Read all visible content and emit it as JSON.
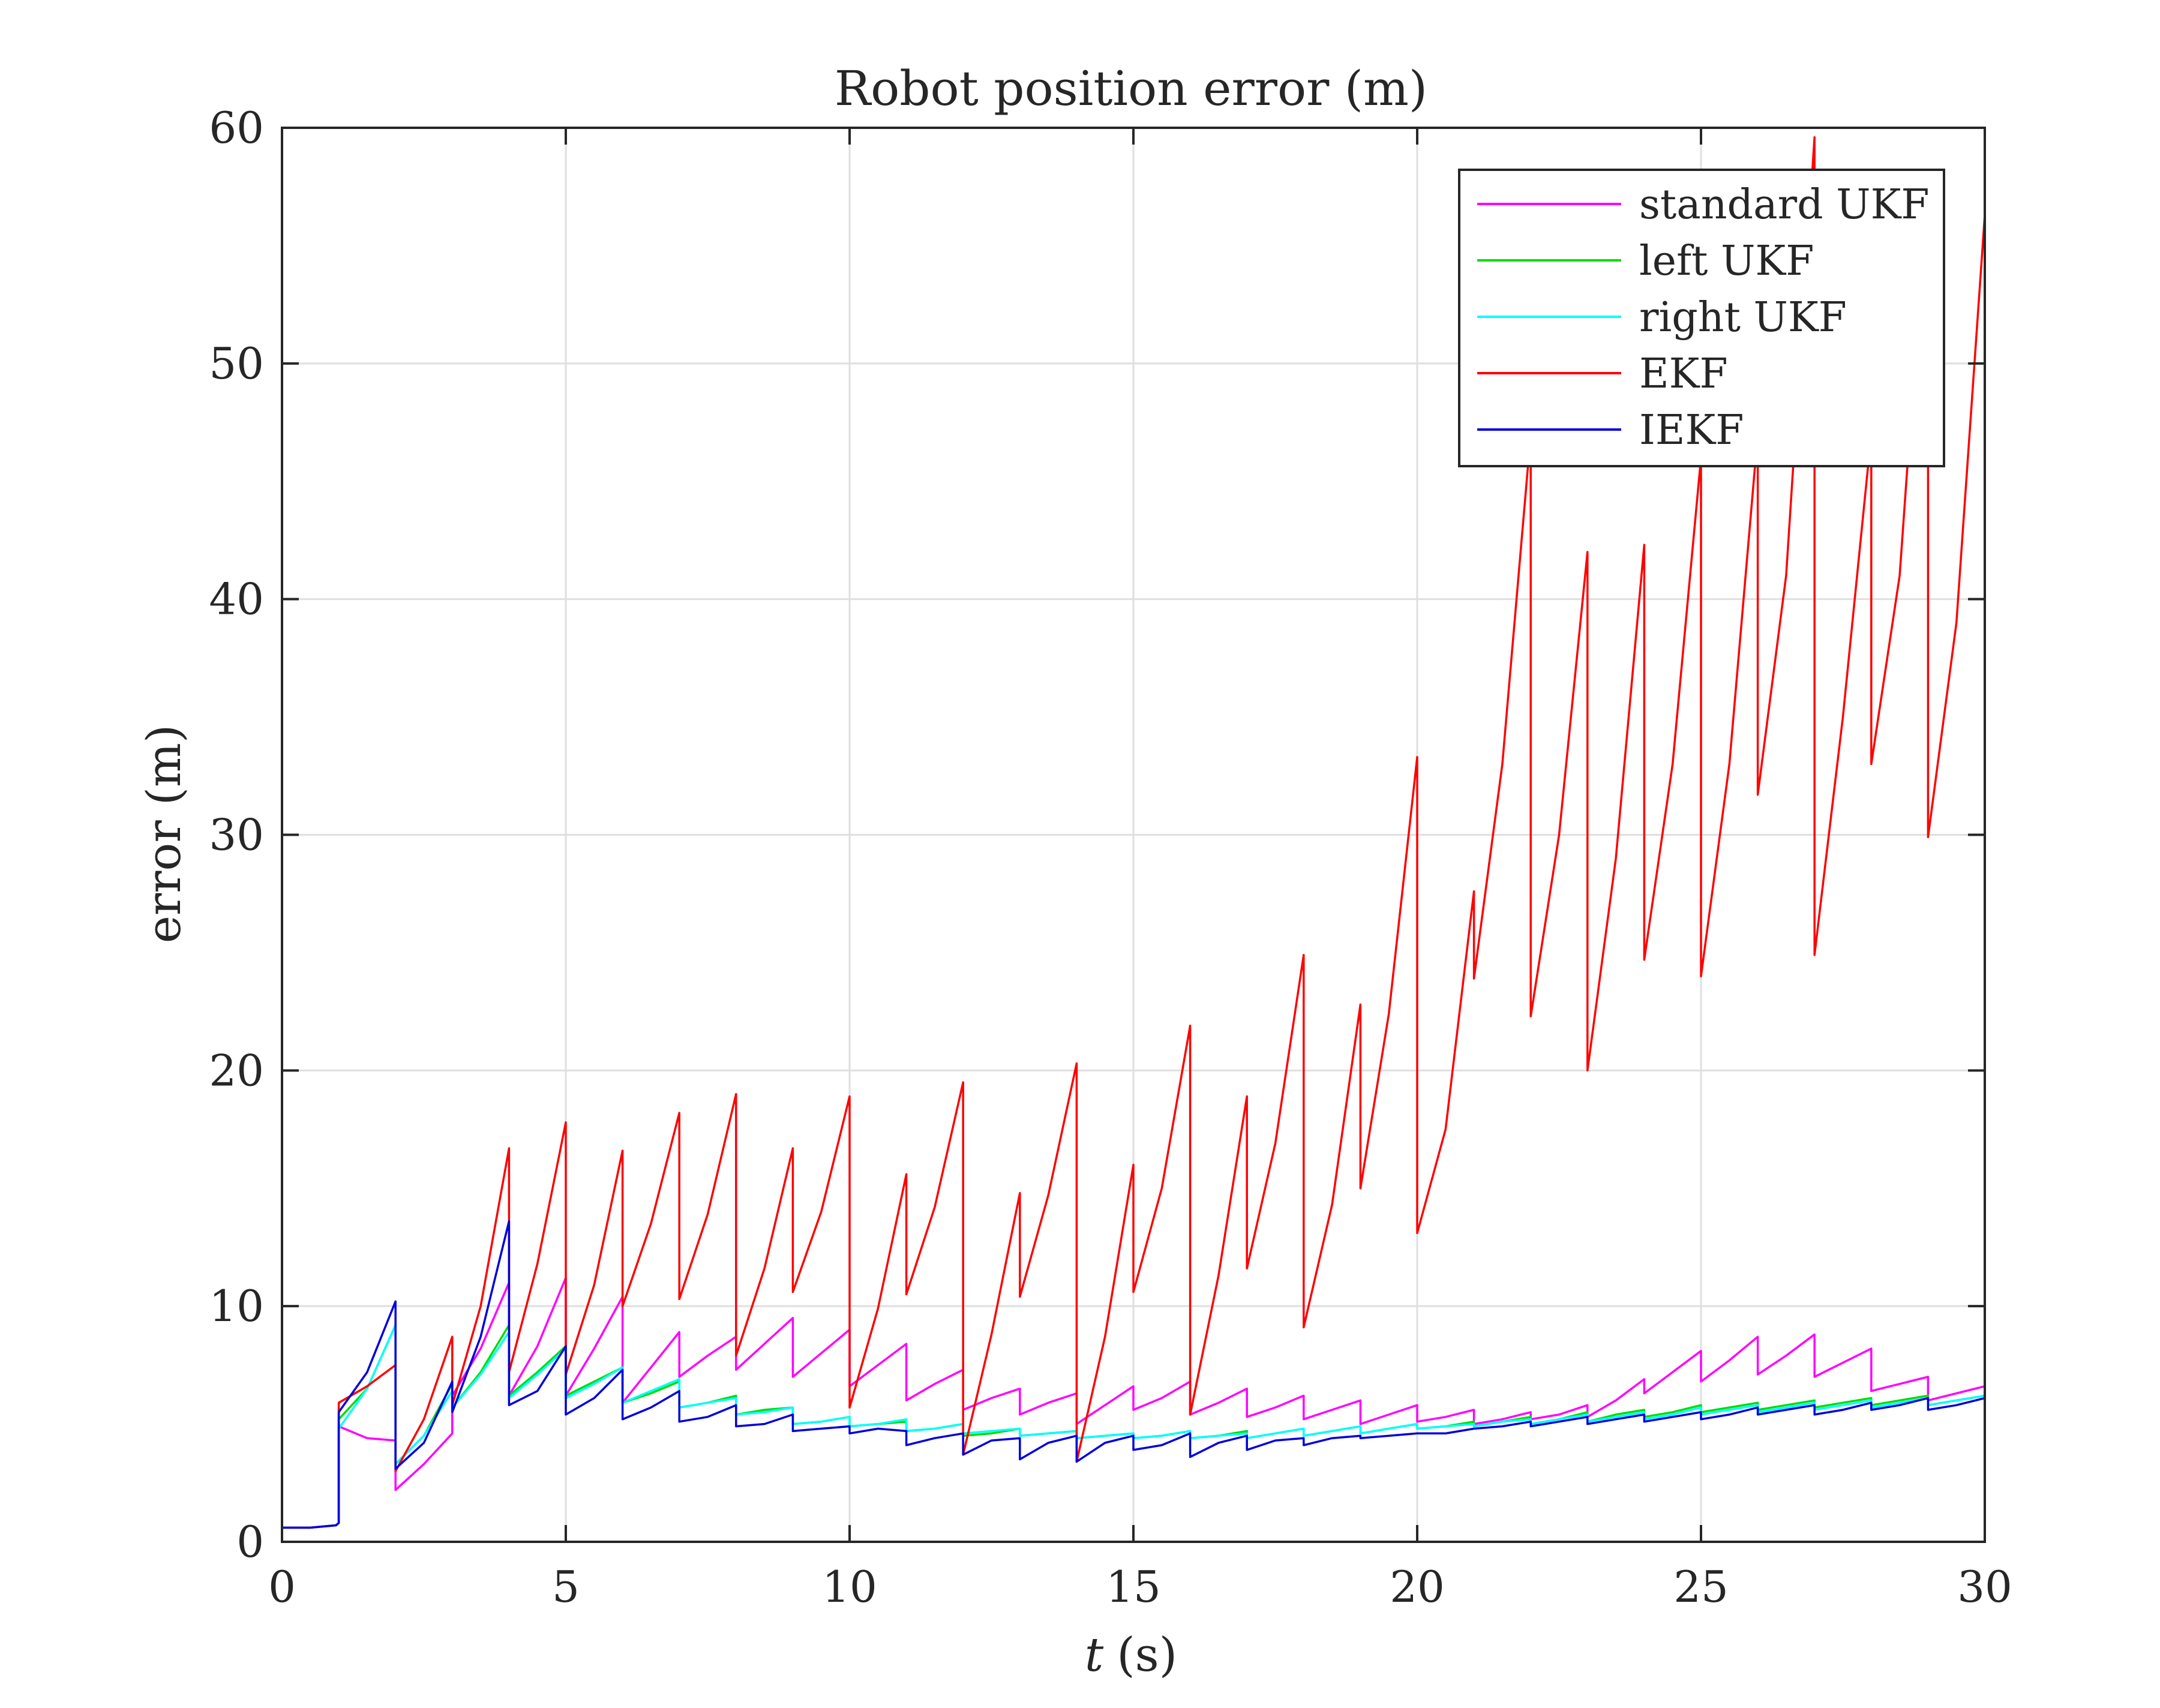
{
  "chart_data": {
    "type": "line",
    "title": "Robot position error (m)",
    "xlabel_var": "t",
    "xlabel_unit": "(s)",
    "ylabel": "error (m)",
    "xlim": [
      0,
      30
    ],
    "ylim": [
      0,
      60
    ],
    "xticks": [
      0,
      5,
      10,
      15,
      20,
      25,
      30
    ],
    "yticks": [
      0,
      10,
      20,
      30,
      40,
      50,
      60
    ],
    "grid": true,
    "legend_position": "top-right",
    "series": [
      {
        "name": "standard UKF",
        "color": "#ff00ff",
        "x": [
          0,
          0.5,
          0.95,
          1,
          1,
          1.5,
          2,
          2,
          2.5,
          3,
          3,
          3.5,
          4,
          4,
          4.5,
          5,
          5,
          5.5,
          6,
          6,
          6.5,
          7,
          7,
          7.5,
          8,
          8,
          8.5,
          9,
          9,
          9.5,
          10,
          10,
          10.5,
          11,
          11,
          11.5,
          12,
          12,
          12.5,
          13,
          13,
          13.5,
          14,
          14,
          14.5,
          15,
          15,
          15.5,
          16,
          16,
          16.5,
          17,
          17,
          17.5,
          18,
          18,
          18.5,
          19,
          19,
          19.5,
          20,
          20,
          20.5,
          21,
          21,
          21.5,
          22,
          22,
          22.5,
          23,
          23,
          23.5,
          24,
          24,
          24.5,
          25,
          25,
          25.5,
          26,
          26,
          26.5,
          27,
          27,
          27.5,
          28,
          28,
          28.5,
          29,
          29,
          29.5,
          30
        ],
        "y": [
          0.6,
          0.6,
          0.7,
          0.8,
          4.9,
          4.4,
          4.3,
          2.2,
          3.3,
          4.6,
          6.2,
          8.2,
          11.0,
          6.2,
          8.3,
          11.2,
          6.2,
          8.2,
          10.4,
          5.9,
          7.4,
          8.9,
          7.0,
          7.9,
          8.7,
          7.3,
          8.4,
          9.5,
          7.0,
          8.0,
          9.0,
          6.6,
          7.5,
          8.4,
          6.0,
          6.7,
          7.3,
          5.6,
          6.1,
          6.5,
          5.4,
          5.9,
          6.3,
          5.0,
          5.8,
          6.6,
          5.6,
          6.1,
          6.8,
          5.4,
          5.9,
          6.5,
          5.3,
          5.7,
          6.2,
          5.2,
          5.6,
          6.0,
          5.0,
          5.4,
          5.8,
          5.1,
          5.3,
          5.6,
          5.0,
          5.2,
          5.5,
          5.2,
          5.4,
          5.8,
          5.3,
          6.0,
          6.9,
          6.3,
          7.2,
          8.1,
          6.8,
          7.7,
          8.7,
          7.1,
          7.9,
          8.8,
          7.0,
          7.6,
          8.2,
          6.4,
          6.7,
          7.0,
          6.0,
          6.3,
          6.6
        ]
      },
      {
        "name": "left UKF",
        "color": "#00dd00",
        "x": [
          0,
          0.5,
          0.95,
          1,
          1,
          1.5,
          2,
          2,
          2.5,
          3,
          3,
          3.5,
          4,
          4,
          4.5,
          5,
          5,
          5.5,
          6,
          6,
          6.5,
          7,
          7,
          7.5,
          8,
          8,
          8.5,
          9,
          9,
          9.5,
          10,
          10,
          10.5,
          11,
          11,
          11.5,
          12,
          12,
          12.5,
          13,
          13,
          13.5,
          14,
          14,
          14.5,
          15,
          15,
          15.5,
          16,
          16,
          16.5,
          17,
          17,
          17.5,
          18,
          18,
          18.5,
          19,
          19,
          19.5,
          20,
          20,
          20.5,
          21,
          21,
          21.5,
          22,
          22,
          22.5,
          23,
          23,
          23.5,
          24,
          24,
          24.5,
          25,
          25,
          25.5,
          26,
          26,
          26.5,
          27,
          27,
          27.5,
          28,
          28,
          28.5,
          29,
          29,
          29.5,
          30
        ],
        "y": [
          0.6,
          0.6,
          0.7,
          0.8,
          5.2,
          6.5,
          9.2,
          3.3,
          4.5,
          6.7,
          5.7,
          7.2,
          9.2,
          6.2,
          7.2,
          8.3,
          6.2,
          6.8,
          7.4,
          5.9,
          6.3,
          6.8,
          5.7,
          5.9,
          6.2,
          5.4,
          5.6,
          5.7,
          5.0,
          5.1,
          5.3,
          4.9,
          5.0,
          5.1,
          4.7,
          4.8,
          5.0,
          4.5,
          4.6,
          4.8,
          4.5,
          4.6,
          4.7,
          4.4,
          4.5,
          4.6,
          4.4,
          4.5,
          4.7,
          4.4,
          4.5,
          4.7,
          4.4,
          4.6,
          4.8,
          4.5,
          4.7,
          4.9,
          4.6,
          4.8,
          5.0,
          4.8,
          4.9,
          5.1,
          4.9,
          5.1,
          5.3,
          5.0,
          5.2,
          5.5,
          5.1,
          5.4,
          5.6,
          5.3,
          5.5,
          5.8,
          5.5,
          5.7,
          5.9,
          5.6,
          5.8,
          6.0,
          5.7,
          5.9,
          6.1,
          5.8,
          6.0,
          6.2,
          5.8,
          6.0,
          6.2
        ]
      },
      {
        "name": "right UKF",
        "color": "#00ffff",
        "x": [
          0,
          0.5,
          0.95,
          1,
          1,
          1.5,
          2,
          2,
          2.5,
          3,
          3,
          3.5,
          4,
          4,
          4.5,
          5,
          5,
          5.5,
          6,
          6,
          6.5,
          7,
          7,
          7.5,
          8,
          8,
          8.5,
          9,
          9,
          9.5,
          10,
          10,
          10.5,
          11,
          11,
          11.5,
          12,
          12,
          12.5,
          13,
          13,
          13.5,
          14,
          14,
          14.5,
          15,
          15,
          15.5,
          16,
          16,
          16.5,
          17,
          17,
          17.5,
          18,
          18,
          18.5,
          19,
          19,
          19.5,
          20,
          20,
          20.5,
          21,
          21,
          21.5,
          22,
          22,
          22.5,
          23,
          23,
          23.5,
          24,
          24,
          24.5,
          25,
          25,
          25.5,
          26,
          26,
          26.5,
          27,
          27,
          27.5,
          28,
          28,
          28.5,
          29,
          29,
          29.5,
          30
        ],
        "y": [
          0.6,
          0.6,
          0.7,
          0.8,
          4.8,
          6.5,
          9.2,
          3.3,
          4.5,
          6.4,
          5.7,
          7.1,
          8.9,
          6.1,
          7.1,
          8.2,
          6.1,
          6.7,
          7.4,
          5.9,
          6.4,
          6.9,
          5.7,
          5.9,
          6.1,
          5.4,
          5.5,
          5.7,
          5.0,
          5.1,
          5.3,
          4.9,
          5.0,
          5.2,
          4.7,
          4.8,
          5.0,
          4.6,
          4.7,
          4.8,
          4.5,
          4.6,
          4.7,
          4.4,
          4.5,
          4.6,
          4.4,
          4.5,
          4.7,
          4.4,
          4.5,
          4.6,
          4.4,
          4.6,
          4.8,
          4.5,
          4.7,
          4.9,
          4.6,
          4.8,
          5.0,
          4.8,
          4.9,
          5.0,
          4.9,
          5.1,
          5.2,
          5.0,
          5.2,
          5.4,
          5.1,
          5.3,
          5.5,
          5.2,
          5.4,
          5.7,
          5.4,
          5.6,
          5.8,
          5.5,
          5.7,
          5.9,
          5.6,
          5.8,
          6.0,
          5.7,
          5.9,
          6.1,
          5.8,
          6.0,
          6.2
        ]
      },
      {
        "name": "EKF",
        "color": "#ff0000",
        "x": [
          0,
          0.5,
          0.95,
          1,
          1,
          1.5,
          2,
          2,
          2.5,
          3,
          3,
          3.5,
          4,
          4,
          4.5,
          5,
          5,
          5.5,
          6,
          6,
          6.5,
          7,
          7,
          7.5,
          8,
          8,
          8.5,
          9,
          9,
          9.5,
          10,
          10,
          10.5,
          11,
          11,
          11.5,
          12,
          12,
          12.5,
          13,
          13,
          13.5,
          14,
          14,
          14.5,
          15,
          15,
          15.5,
          16,
          16,
          16.5,
          17,
          17,
          17.5,
          18,
          18,
          18.5,
          19,
          19,
          19.5,
          20,
          20,
          20.5,
          21,
          21,
          21.5,
          22,
          22,
          22.5,
          23,
          23,
          23.5,
          24,
          24,
          24.5,
          25,
          25,
          25.5,
          26,
          26,
          26.5,
          27,
          27,
          27.5,
          28,
          28,
          28.5,
          29,
          29,
          29.5,
          30
        ],
        "y": [
          0.6,
          0.6,
          0.7,
          0.8,
          5.9,
          6.6,
          7.5,
          3.0,
          5.2,
          8.7,
          5.8,
          10.0,
          16.7,
          7.2,
          11.8,
          17.8,
          7.1,
          10.9,
          16.6,
          10.0,
          13.5,
          18.2,
          10.3,
          13.9,
          19.0,
          7.9,
          11.6,
          16.7,
          10.6,
          14.0,
          18.9,
          5.7,
          9.9,
          15.6,
          10.5,
          14.2,
          19.5,
          3.7,
          8.8,
          14.8,
          10.4,
          14.7,
          20.3,
          3.4,
          8.7,
          16.0,
          10.6,
          15.0,
          21.9,
          5.4,
          11.3,
          18.9,
          11.6,
          16.9,
          24.9,
          9.1,
          14.3,
          22.8,
          15.0,
          22.4,
          33.3,
          13.1,
          17.5,
          27.6,
          23.9,
          33.0,
          47.0,
          22.3,
          30.0,
          42.0,
          20.0,
          29.0,
          42.3,
          24.7,
          33.0,
          46.0,
          24.0,
          33.0,
          47.0,
          31.7,
          41.0,
          59.6,
          24.9,
          35.0,
          47.0,
          33.0,
          41.0,
          58.0,
          29.9,
          39.0,
          56.3
        ]
      },
      {
        "name": "IEKF",
        "color": "#0000dd",
        "x": [
          0,
          0.5,
          0.95,
          1,
          1,
          1.5,
          2,
          2,
          2.5,
          3,
          3,
          3.5,
          4,
          4,
          4.5,
          5,
          5,
          5.5,
          6,
          6,
          6.5,
          7,
          7,
          7.5,
          8,
          8,
          8.5,
          9,
          9,
          9.5,
          10,
          10,
          10.5,
          11,
          11,
          11.5,
          12,
          12,
          12.5,
          13,
          13,
          13.5,
          14,
          14,
          14.5,
          15,
          15,
          15.5,
          16,
          16,
          16.5,
          17,
          17,
          17.5,
          18,
          18,
          18.5,
          19,
          19,
          19.5,
          20,
          20,
          20.5,
          21,
          21,
          21.5,
          22,
          22,
          22.5,
          23,
          23,
          23.5,
          24,
          24,
          24.5,
          25,
          25,
          25.5,
          26,
          26,
          26.5,
          27,
          27,
          27.5,
          28,
          28,
          28.5,
          29,
          29,
          29.5,
          30
        ],
        "y": [
          0.6,
          0.6,
          0.7,
          0.8,
          5.5,
          7.2,
          10.2,
          3.1,
          4.2,
          6.8,
          5.5,
          8.7,
          13.6,
          5.8,
          6.4,
          8.3,
          5.4,
          6.1,
          7.3,
          5.2,
          5.7,
          6.4,
          5.1,
          5.3,
          5.8,
          4.9,
          5.0,
          5.4,
          4.7,
          4.8,
          4.9,
          4.6,
          4.8,
          4.7,
          4.1,
          4.4,
          4.6,
          3.7,
          4.3,
          4.4,
          3.5,
          4.2,
          4.5,
          3.4,
          4.2,
          4.5,
          3.9,
          4.1,
          4.6,
          3.6,
          4.2,
          4.5,
          3.9,
          4.3,
          4.4,
          4.1,
          4.4,
          4.5,
          4.4,
          4.5,
          4.6,
          4.6,
          4.6,
          4.8,
          4.8,
          4.9,
          5.1,
          4.9,
          5.1,
          5.3,
          5.0,
          5.2,
          5.4,
          5.1,
          5.3,
          5.5,
          5.2,
          5.4,
          5.7,
          5.4,
          5.6,
          5.8,
          5.4,
          5.6,
          5.9,
          5.6,
          5.8,
          6.1,
          5.6,
          5.8,
          6.1
        ]
      }
    ]
  }
}
